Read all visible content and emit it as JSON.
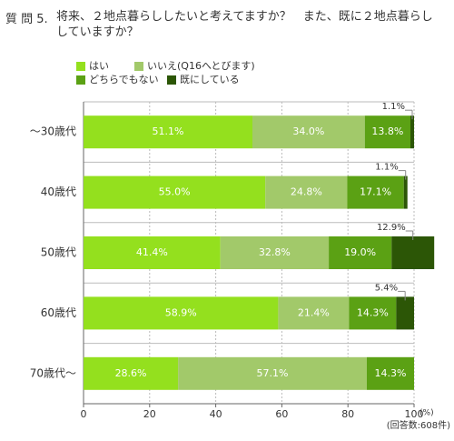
{
  "chart_data": {
    "type": "stacked-bar-horizontal",
    "question_label": "質 問 5.",
    "title": "将来、２地点暮らししたいと考えてますか？　また、既に２地点暮らししていますか？",
    "categories": [
      "～30歳代",
      "40歳代",
      "50歳代",
      "60歳代",
      "70歳代～"
    ],
    "series": [
      {
        "name": "はい",
        "color": "#94e01e",
        "values": [
          51.1,
          55.0,
          41.4,
          58.9,
          28.6
        ],
        "value_labels": [
          "51.1%",
          "55.0%",
          "41.4%",
          "58.9%",
          "28.6%"
        ]
      },
      {
        "name": "いいえ(Q16へとびます)",
        "color": "#a2c96a",
        "values": [
          34.0,
          24.8,
          32.8,
          21.4,
          57.1
        ],
        "value_labels": [
          "34.0%",
          "24.8%",
          "32.8%",
          "21.4%",
          "57.1%"
        ]
      },
      {
        "name": "どちらでもない",
        "color": "#5ba114",
        "values": [
          13.8,
          17.1,
          19.0,
          14.3,
          14.3
        ],
        "value_labels": [
          "13.8%",
          "17.1%",
          "19.0%",
          "14.3%",
          "14.3%"
        ]
      },
      {
        "name": "既にしている",
        "color": "#2c5606",
        "values": [
          1.1,
          1.1,
          12.9,
          5.4,
          null
        ],
        "value_labels": [
          "1.1%",
          "1.1%",
          "12.9%",
          "5.4%",
          null
        ]
      }
    ],
    "xlim": [
      0,
      100
    ],
    "xticks": [
      0,
      20,
      40,
      60,
      80,
      100
    ],
    "x_unit": "(%)",
    "note": "(回答数:608件)",
    "grid": true
  }
}
